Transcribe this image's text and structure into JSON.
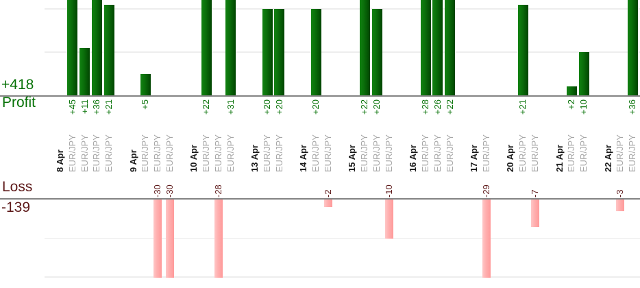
{
  "chart_data": {
    "type": "bar",
    "description": "Per-trade profit and loss bar chart grouped by date; profits drawn upward in the top panel, losses downward in the bottom panel",
    "instrument_label": "EUR/JPY",
    "profit": {
      "axis_label": "Profit",
      "total_label": "+418",
      "total_value": 418,
      "gridline_values": [
        10,
        20
      ]
    },
    "loss": {
      "axis_label": "Loss",
      "total_label": "-139",
      "total_value": -139,
      "gridline_values": [
        -10,
        -20
      ]
    },
    "groups": [
      {
        "date": "8 Apr",
        "trades": [
          {
            "instrument": "EUR/JPY",
            "value": 45,
            "value_label": "+45"
          },
          {
            "instrument": "EUR/JPY",
            "value": 11,
            "value_label": "+11"
          },
          {
            "instrument": "EUR/JPY",
            "value": 36,
            "value_label": "+36"
          },
          {
            "instrument": "EUR/JPY",
            "value": 21,
            "value_label": "+21"
          }
        ]
      },
      {
        "date": "9 Apr",
        "trades": [
          {
            "instrument": "EUR/JPY",
            "value": 5,
            "value_label": "+5"
          },
          {
            "instrument": "EUR/JPY",
            "value": -30,
            "value_label": "-30"
          },
          {
            "instrument": "EUR/JPY",
            "value": -30,
            "value_label": "-30"
          }
        ]
      },
      {
        "date": "10 Apr",
        "trades": [
          {
            "instrument": "EUR/JPY",
            "value": 22,
            "value_label": "+22"
          },
          {
            "instrument": "EUR/JPY",
            "value": -28,
            "value_label": "-28"
          },
          {
            "instrument": "EUR/JPY",
            "value": 31,
            "value_label": "+31"
          }
        ]
      },
      {
        "date": "13 Apr",
        "trades": [
          {
            "instrument": "EUR/JPY",
            "value": 20,
            "value_label": "+20"
          },
          {
            "instrument": "EUR/JPY",
            "value": 20,
            "value_label": "+20"
          }
        ]
      },
      {
        "date": "14 Apr",
        "trades": [
          {
            "instrument": "EUR/JPY",
            "value": 20,
            "value_label": "+20"
          },
          {
            "instrument": "EUR/JPY",
            "value": -2,
            "value_label": "-2"
          }
        ]
      },
      {
        "date": "15 Apr",
        "trades": [
          {
            "instrument": "EUR/JPY",
            "value": 22,
            "value_label": "+22"
          },
          {
            "instrument": "EUR/JPY",
            "value": 20,
            "value_label": "+20"
          },
          {
            "instrument": "EUR/JPY",
            "value": -10,
            "value_label": "-10"
          }
        ]
      },
      {
        "date": "16 Apr",
        "trades": [
          {
            "instrument": "EUR/JPY",
            "value": 28,
            "value_label": "+28"
          },
          {
            "instrument": "EUR/JPY",
            "value": 26,
            "value_label": "+26"
          },
          {
            "instrument": "EUR/JPY",
            "value": 22,
            "value_label": "+22"
          }
        ]
      },
      {
        "date": "17 Apr",
        "trades": [
          {
            "instrument": "EUR/JPY",
            "value": -29,
            "value_label": "-29"
          }
        ]
      },
      {
        "date": "20 Apr",
        "trades": [
          {
            "instrument": "EUR/JPY",
            "value": 21,
            "value_label": "+21"
          },
          {
            "instrument": "EUR/JPY",
            "value": -7,
            "value_label": "-7"
          }
        ]
      },
      {
        "date": "21 Apr",
        "trades": [
          {
            "instrument": "EUR/JPY",
            "value": 2,
            "value_label": "+2"
          },
          {
            "instrument": "EUR/JPY",
            "value": 10,
            "value_label": "+10"
          }
        ]
      },
      {
        "date": "22 Apr",
        "trades": [
          {
            "instrument": "EUR/JPY",
            "value": -3,
            "value_label": "-3"
          },
          {
            "instrument": "EUR/JPY",
            "value": 36,
            "value_label": "+36"
          }
        ]
      }
    ],
    "layout_hints": {
      "legend": "none",
      "grid": "horizontal light gray lines at 10-unit steps",
      "profit_panel_visible_range": [
        0,
        22
      ],
      "loss_panel_visible_range": [
        0,
        -20
      ],
      "bars_exceeding_range_are_clipped": true
    }
  },
  "colors": {
    "profit_bar": "#0b720b",
    "loss_bar": "#ffaeae",
    "profit_text": "#067106",
    "loss_text": "#5e1a1a",
    "date_text": "#1a1a1a",
    "instrument_text": "#a6a6a6",
    "gridline": "#ededed",
    "axis_line": "#838383"
  }
}
